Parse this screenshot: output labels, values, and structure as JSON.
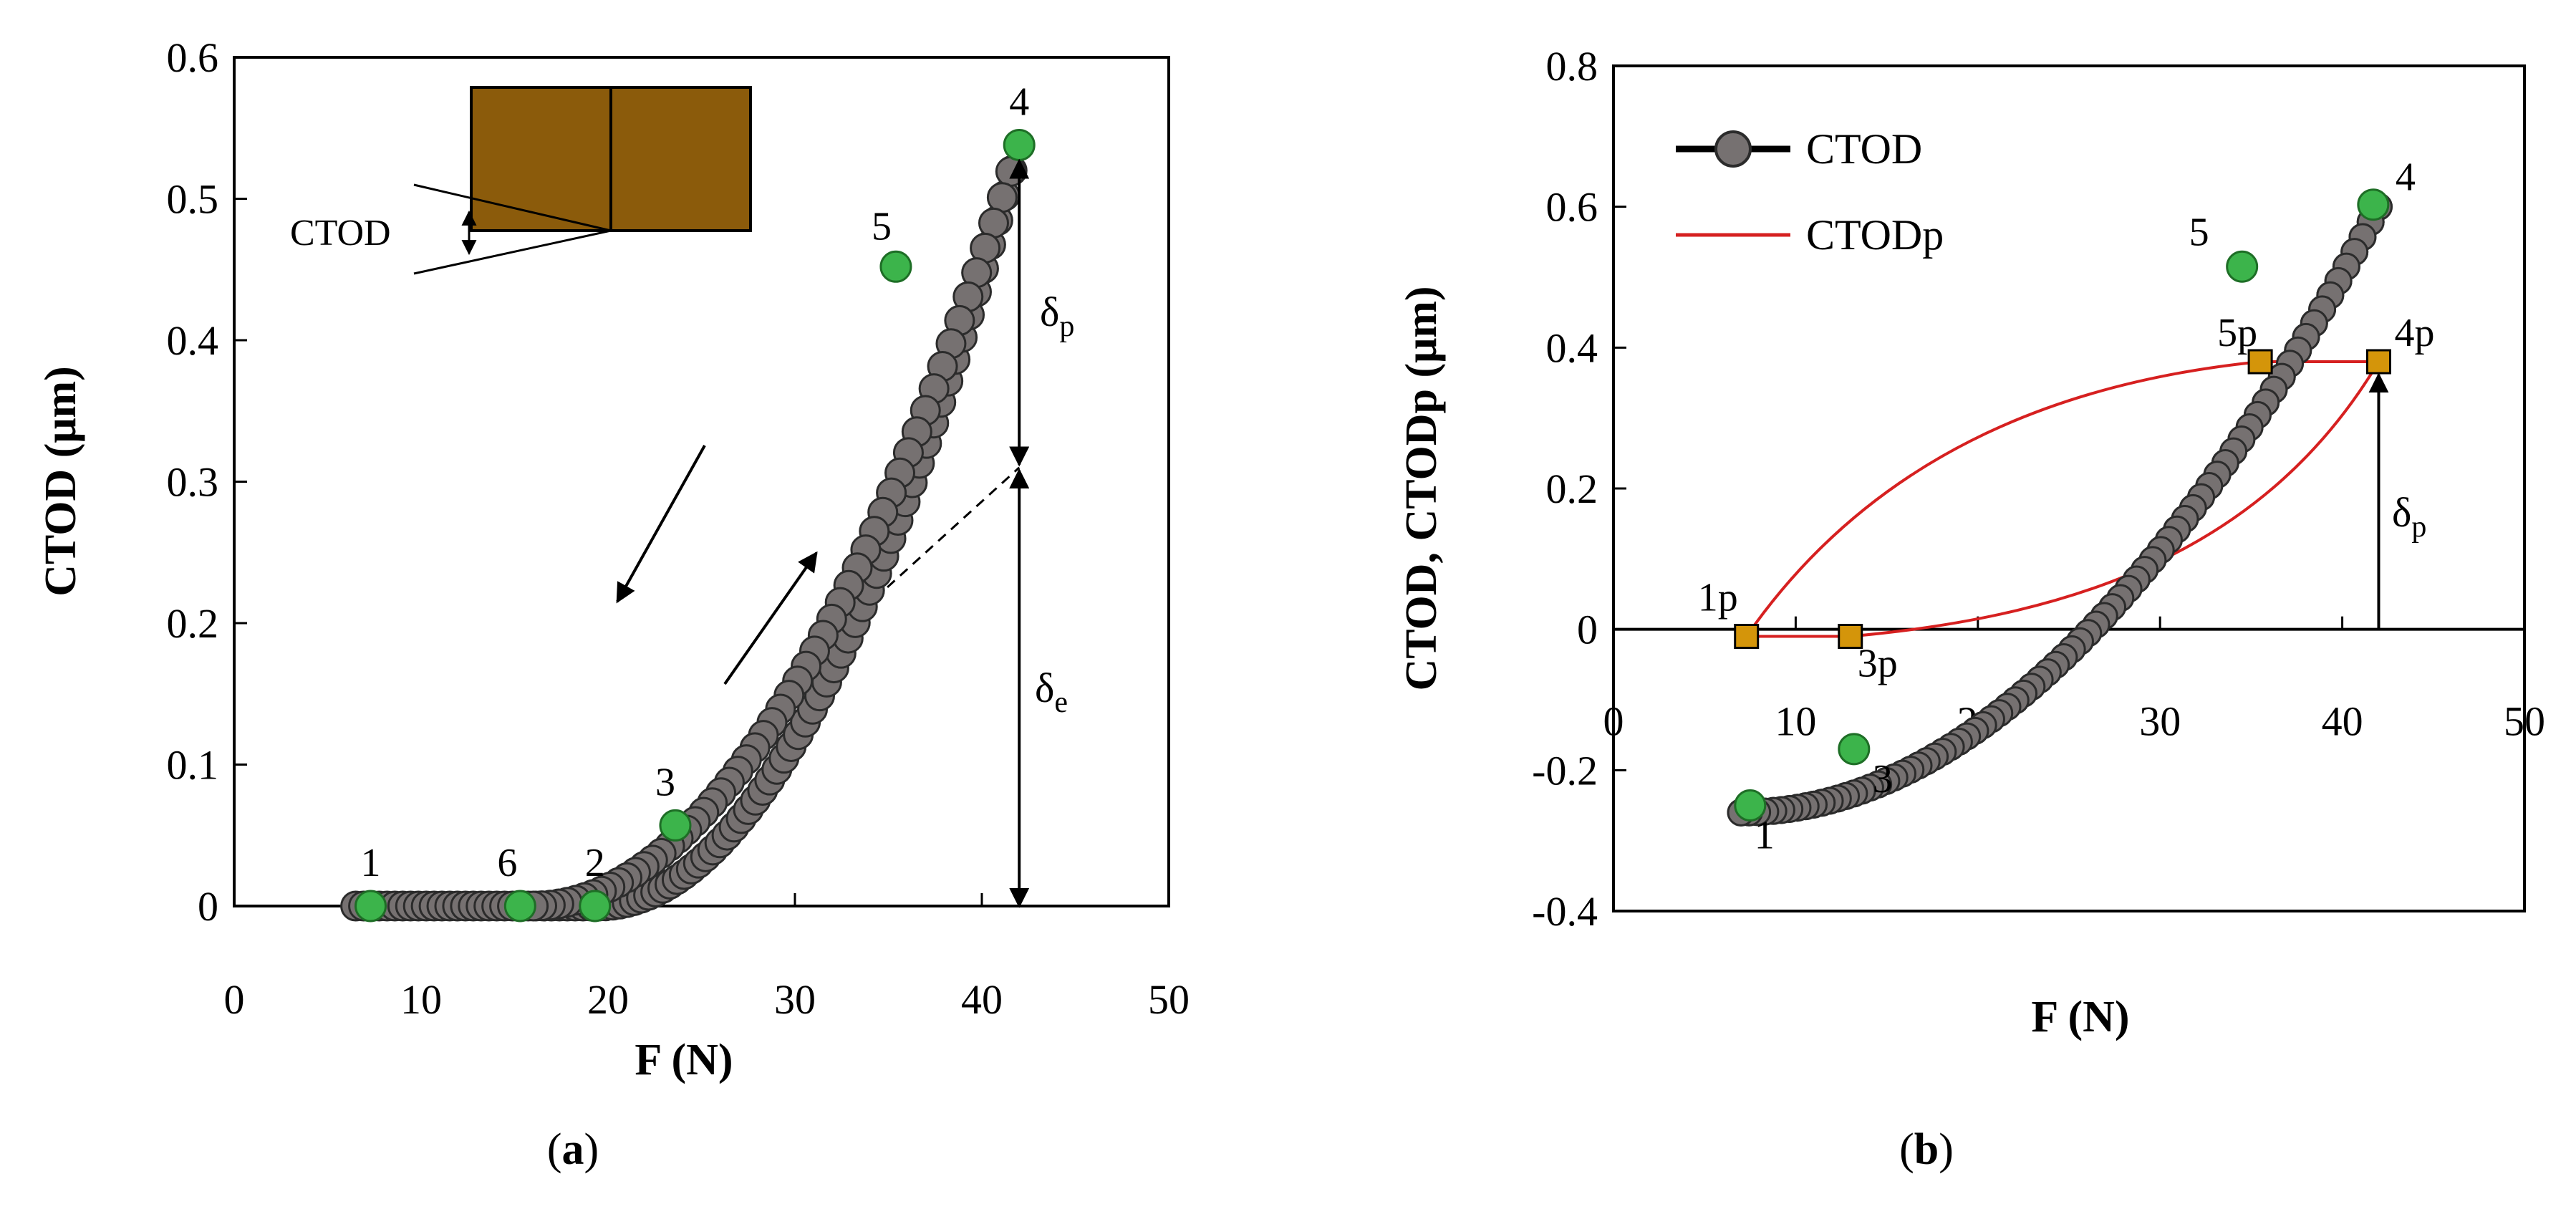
{
  "colors": {
    "curve_fill": "#767171",
    "curve_stroke": "#2b2b2b",
    "key_point": "#3cb44b",
    "key_point_stroke": "#1e6e26",
    "ctodp_line": "#d62020",
    "ctodp_marker": "#d4950a",
    "block": "#8b5b0b",
    "axis": "#000000",
    "dashed": "#000000"
  },
  "chart_data": [
    {
      "id": "a",
      "type": "scatter",
      "panel_label": "(a)",
      "panel_letter": "a",
      "xlabel": "F (N)",
      "ylabel": "CTOD (μm)",
      "xlim": [
        0,
        50
      ],
      "ylim": [
        0,
        0.6
      ],
      "xticks": [
        0,
        10,
        20,
        30,
        40,
        50
      ],
      "yticks": [
        0,
        0.1,
        0.2,
        0.3,
        0.4,
        0.5,
        0.6
      ],
      "ytick_labels": [
        "0",
        "0.1",
        "0.2",
        "0.3",
        "0.4",
        "0.5",
        "0.6"
      ],
      "series": [
        {
          "name": "CTOD",
          "segments": [
            {
              "from": [
                6.5,
                0
              ],
              "to": [
                19.5,
                0
              ],
              "n": 32,
              "shape": "linear"
            },
            {
              "from": [
                19.5,
                0
              ],
              "to": [
                42,
                0.538
              ],
              "n": 60,
              "shape": "convex"
            },
            {
              "from": [
                42,
                0.538
              ],
              "to": [
                16,
                0
              ],
              "n": 58,
              "shape": "concave"
            }
          ]
        }
      ],
      "key_points": [
        {
          "label": "1",
          "x": 7.3,
          "y": 0
        },
        {
          "label": "6",
          "x": 15.3,
          "y": 0
        },
        {
          "label": "2",
          "x": 19.3,
          "y": 0
        },
        {
          "label": "3",
          "x": 23.6,
          "y": 0.057
        },
        {
          "label": "5",
          "x": 35.4,
          "y": 0.452
        },
        {
          "label": "4",
          "x": 42,
          "y": 0.538
        }
      ],
      "annotations": {
        "delta_p": "δ",
        "delta_p_sub": "p",
        "delta_e": "δ",
        "delta_e_sub": "e",
        "inset_label": "CTOD",
        "delta_split_y": 0.31
      }
    },
    {
      "id": "b",
      "type": "scatter",
      "panel_label": "(b)",
      "panel_letter": "b",
      "xlabel": "F (N)",
      "ylabel": "CTOD, CTODp (μm)",
      "xlim": [
        0,
        50
      ],
      "ylim": [
        -0.4,
        0.8
      ],
      "xticks": [
        0,
        10,
        20,
        30,
        40,
        50
      ],
      "yticks": [
        -0.4,
        -0.2,
        0,
        0.2,
        0.4,
        0.6,
        0.8
      ],
      "ytick_labels": [
        "-0.4",
        "-0.2",
        "0",
        "0.2",
        "0.4",
        "0.6",
        "0.8"
      ],
      "legend": {
        "position": "top-left",
        "entries": [
          "CTOD",
          "CTODp"
        ]
      },
      "series": [
        {
          "name": "CTOD",
          "segments": [
            {
              "from": [
                7,
                -0.26
              ],
              "to": [
                42,
                0.6
              ],
              "n": 80,
              "shape": "convex"
            },
            {
              "from": [
                42,
                0.6
              ],
              "to": [
                7,
                -0.26
              ],
              "n": 80,
              "shape": "concave"
            }
          ]
        },
        {
          "name": "CTODp",
          "points": [
            {
              "label": "1p",
              "x": 7.3,
              "y": -0.01
            },
            {
              "label": "3p",
              "x": 13,
              "y": -0.01
            },
            {
              "label": "4p",
              "x": 42,
              "y": 0.38
            },
            {
              "label": "5p",
              "x": 35.5,
              "y": 0.38
            }
          ]
        }
      ],
      "key_points": [
        {
          "label": "1",
          "x": 7.5,
          "y": -0.25
        },
        {
          "label": "3",
          "x": 13.2,
          "y": -0.17
        },
        {
          "label": "5",
          "x": 34.5,
          "y": 0.515
        },
        {
          "label": "4",
          "x": 41.7,
          "y": 0.603
        }
      ],
      "annotations": {
        "delta_p": "δ",
        "delta_p_sub": "p"
      }
    }
  ]
}
